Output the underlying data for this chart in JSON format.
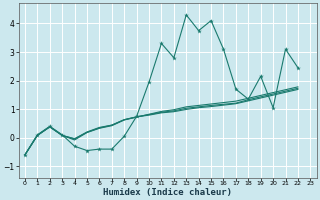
{
  "bg_color": "#cce8ee",
  "grid_color": "#ffffff",
  "line_color": "#1a7a6e",
  "xlabel": "Humidex (Indice chaleur)",
  "xlim": [
    -0.5,
    23.5
  ],
  "ylim": [
    -1.4,
    4.7
  ],
  "yticks": [
    -1,
    0,
    1,
    2,
    3,
    4
  ],
  "xticks": [
    0,
    1,
    2,
    3,
    4,
    5,
    6,
    7,
    8,
    9,
    10,
    11,
    12,
    13,
    14,
    15,
    16,
    17,
    18,
    19,
    20,
    21,
    22,
    23
  ],
  "series": [
    [
      -0.6,
      0.1,
      0.4,
      0.1,
      -0.3,
      -0.45,
      -0.4,
      -0.4,
      0.05,
      0.75,
      1.95,
      3.3,
      2.8,
      4.3,
      3.75,
      4.1,
      3.1,
      1.7,
      1.35,
      2.15,
      1.05,
      3.1,
      2.45
    ],
    [
      -0.6,
      0.08,
      0.38,
      0.08,
      -0.08,
      0.18,
      0.33,
      0.42,
      0.62,
      0.72,
      0.82,
      0.92,
      0.98,
      1.08,
      1.13,
      1.18,
      1.23,
      1.28,
      1.38,
      1.48,
      1.58,
      1.68,
      1.78
    ],
    [
      -0.6,
      0.08,
      0.38,
      0.08,
      -0.04,
      0.2,
      0.36,
      0.44,
      0.63,
      0.73,
      0.81,
      0.89,
      0.94,
      1.03,
      1.08,
      1.13,
      1.17,
      1.21,
      1.33,
      1.43,
      1.53,
      1.63,
      1.73
    ],
    [
      -0.6,
      0.08,
      0.38,
      0.08,
      -0.04,
      0.19,
      0.34,
      0.44,
      0.63,
      0.73,
      0.79,
      0.87,
      0.91,
      0.99,
      1.05,
      1.09,
      1.14,
      1.19,
      1.29,
      1.39,
      1.49,
      1.59,
      1.69
    ]
  ]
}
